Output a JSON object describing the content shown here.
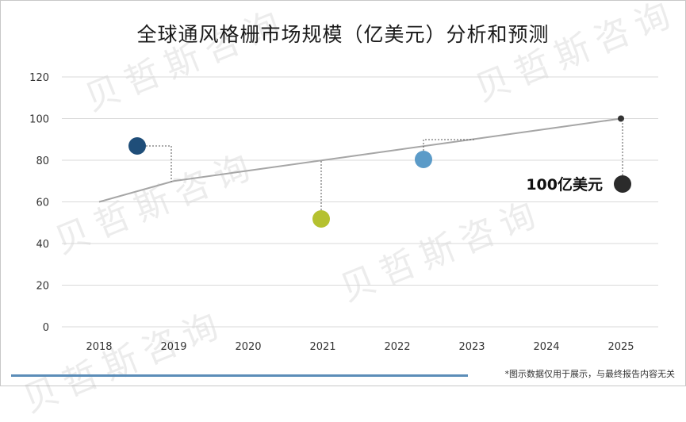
{
  "title": "全球通风格栅市场规模（亿美元）分析和预测",
  "footer_note": "*图示数据仅用于展示，与最终报告内容无关",
  "watermark_text": "贝哲斯咨询",
  "colors": {
    "line": "#a6a6a6",
    "grid": "#d9d9d9",
    "dot_navy": "#1f4e79",
    "dot_green": "#b5c12f",
    "dot_blue": "#5b9bc8",
    "dot_dark": "#2b2b2b",
    "footer_line": "#5b8db8"
  },
  "chart_data": {
    "type": "line",
    "categories": [
      "2018",
      "2019",
      "2020",
      "2021",
      "2022",
      "2023",
      "2024",
      "2025"
    ],
    "series": [
      {
        "values": [
          60,
          70,
          75,
          80,
          85,
          90,
          95,
          100
        ]
      }
    ],
    "ylim": [
      0,
      120
    ],
    "yticks": [
      0,
      20,
      40,
      60,
      80,
      100,
      120
    ],
    "grid": true,
    "annotations": [
      {
        "label": "100亿美元"
      }
    ]
  }
}
